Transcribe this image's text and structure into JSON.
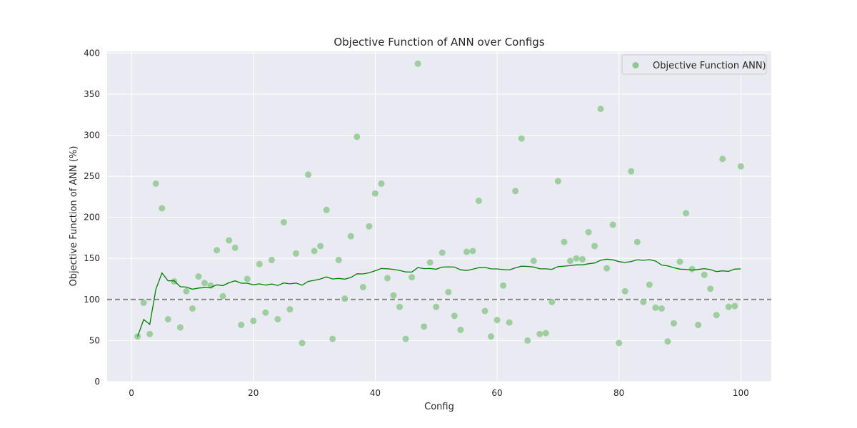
{
  "chart_data": {
    "type": "scatter",
    "title": "Objective Function of ANN over Configs",
    "xlabel": "Config",
    "ylabel": "Objective Function of ANN (%)",
    "xlim": [
      -4,
      105
    ],
    "ylim": [
      0,
      402
    ],
    "xticks": [
      "0",
      "20",
      "40",
      "60",
      "80",
      "100"
    ],
    "yticks": [
      "0",
      "50",
      "100",
      "150",
      "200",
      "250",
      "300",
      "350",
      "400"
    ],
    "grid": true,
    "background": "#eaeaf2",
    "legend": {
      "placement": "top-right",
      "entries": [
        "Objective Function ANN)"
      ]
    },
    "reference_line": {
      "y": 100,
      "style": "dashed",
      "color": "#808080"
    },
    "scatter_series": {
      "name": "Objective Function ANN)",
      "color": "#8fc98f",
      "x": [
        1,
        2,
        3,
        4,
        5,
        6,
        7,
        8,
        9,
        10,
        11,
        12,
        13,
        14,
        15,
        16,
        17,
        18,
        19,
        20,
        21,
        22,
        23,
        24,
        25,
        26,
        27,
        28,
        29,
        30,
        31,
        32,
        33,
        34,
        35,
        36,
        37,
        38,
        39,
        40,
        41,
        42,
        43,
        44,
        45,
        46,
        47,
        48,
        49,
        50,
        51,
        52,
        53,
        54,
        55,
        56,
        57,
        58,
        59,
        60,
        61,
        62,
        63,
        64,
        65,
        66,
        67,
        68,
        69,
        70,
        71,
        72,
        73,
        74,
        75,
        76,
        77,
        78,
        79,
        80,
        81,
        82,
        83,
        84,
        85,
        86,
        87,
        88,
        89,
        90,
        91,
        92,
        93,
        94,
        95,
        96,
        97,
        98,
        99,
        100
      ],
      "y": [
        55,
        96,
        58,
        241,
        211,
        76,
        122,
        66,
        110,
        89,
        128,
        120,
        117,
        160,
        104,
        172,
        163,
        69,
        125,
        74,
        143,
        84,
        148,
        76,
        194,
        88,
        156,
        47,
        252,
        159,
        165,
        209,
        52,
        148,
        101,
        177,
        298,
        115,
        189,
        229,
        241,
        126,
        105,
        91,
        52,
        127,
        387,
        67,
        145,
        91,
        157,
        109,
        80,
        63,
        158,
        159,
        220,
        86,
        55,
        75,
        117,
        72,
        232,
        296,
        50,
        147,
        58,
        59,
        97,
        244,
        170,
        147,
        150,
        149,
        182,
        165,
        332,
        138,
        191,
        47,
        110,
        256,
        170,
        97,
        118,
        90,
        89,
        49,
        71,
        146,
        205,
        137,
        69,
        130,
        113,
        81,
        271,
        91,
        92,
        262
      ]
    },
    "line_series": {
      "color": "#008000",
      "x": [
        1,
        2,
        3,
        4,
        5,
        6,
        7,
        8,
        9,
        10,
        11,
        12,
        13,
        14,
        15,
        16,
        17,
        18,
        19,
        20,
        21,
        22,
        23,
        24,
        25,
        26,
        27,
        28,
        29,
        30,
        31,
        32,
        33,
        34,
        35,
        36,
        37,
        38,
        39,
        40,
        41,
        42,
        43,
        44,
        45,
        46,
        47,
        48,
        49,
        50,
        51,
        52,
        53,
        54,
        55,
        56,
        57,
        58,
        59,
        60,
        61,
        62,
        63,
        64,
        65,
        66,
        67,
        68,
        69,
        70,
        71,
        72,
        73,
        74,
        75,
        76,
        77,
        78,
        79,
        80,
        81,
        82,
        83,
        84,
        85,
        86,
        87,
        88,
        89,
        90,
        91,
        92,
        93,
        94,
        95,
        96,
        97,
        98,
        99,
        100
      ],
      "y": [
        55,
        75.5,
        69.7,
        112.5,
        132.2,
        122.8,
        122.7,
        115.6,
        115.0,
        112.5,
        113.9,
        114.4,
        114.6,
        117.8,
        116.9,
        120.3,
        122.8,
        119.8,
        119.8,
        117.8,
        119.0,
        117.5,
        118.8,
        117.0,
        120.1,
        119.0,
        120.0,
        117.4,
        122.0,
        123.3,
        124.9,
        127.5,
        124.9,
        125.6,
        124.8,
        126.8,
        131.3,
        131.1,
        132.5,
        135.0,
        137.7,
        137.4,
        136.7,
        135.4,
        133.5,
        133.4,
        138.8,
        137.5,
        137.7,
        136.8,
        139.4,
        139.7,
        139.4,
        136.1,
        135.3,
        136.8,
        138.7,
        139.0,
        137.3,
        137.2,
        136.4,
        136.0,
        138.5,
        140.5,
        140.2,
        139.5,
        137.4,
        137.3,
        136.7,
        140.0,
        140.6,
        141.2,
        142.1,
        142.1,
        143.4,
        144.4,
        147.7,
        149.1,
        148.3,
        146.0,
        145.1,
        146.2,
        148.4,
        147.7,
        148.5,
        146.7,
        142.0,
        140.9,
        138.7,
        136.9,
        136.7,
        135.8,
        136.6,
        137.5,
        136.4,
        134.0,
        134.8,
        134.2,
        137.0,
        137.2
      ]
    }
  }
}
